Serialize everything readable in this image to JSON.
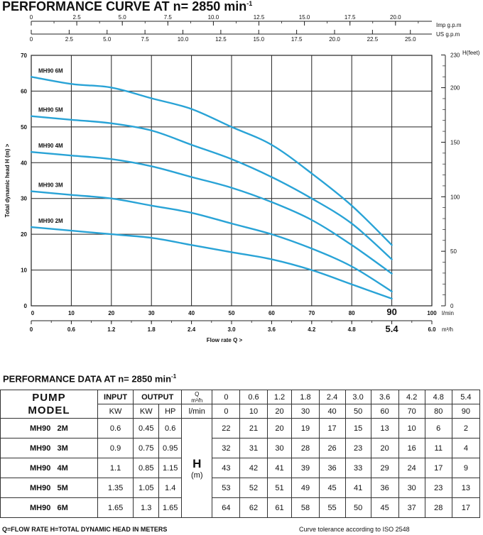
{
  "chart_title": "PERFORMANCE CURVE AT n= 2850 min",
  "chart_title_sup": "-1",
  "chart_data": {
    "type": "line",
    "ylabel": "Total dynamic head H (m)",
    "xlabel": "Flow rate Q",
    "ylim": [
      0,
      70
    ],
    "yticks": [
      "0",
      "10",
      "20",
      "30",
      "40",
      "50",
      "60",
      "70"
    ],
    "xticks_lmin": [
      "10",
      "20",
      "30",
      "40",
      "50",
      "60",
      "70",
      "80",
      "90",
      "100"
    ],
    "xticks_lmin_unit": "l/min",
    "xticks_m3h": [
      "0",
      "0.6",
      "1.2",
      "1.8",
      "2.4",
      "3.0",
      "3.6",
      "4.2",
      "4.8",
      "5.4",
      "6.0"
    ],
    "xticks_m3h_unit": "m³/h",
    "x_lmin_zero": "0",
    "top_imp_label": "Imp g.p.m",
    "top_imp_ticks": [
      "0",
      "2.5",
      "5.0",
      "7.5",
      "10.0",
      "12.5",
      "15.0",
      "17.5",
      "20.0"
    ],
    "top_us_label": "US  g.p.m",
    "top_us_ticks": [
      "0",
      "2.5",
      "5.0",
      "7.5",
      "10.0",
      "12.5",
      "15.0",
      "17.5",
      "20.0",
      "22.5",
      "25.0"
    ],
    "right_axis_label": "H(feet)",
    "right_ticks": [
      "230",
      "200",
      "150",
      "100",
      "50",
      "0"
    ],
    "x": [
      0,
      10,
      20,
      30,
      40,
      50,
      60,
      70,
      80,
      90
    ],
    "series": [
      {
        "name": "MH90 2M",
        "values": [
          22,
          21,
          20,
          19,
          17,
          15,
          13,
          10,
          6,
          2
        ]
      },
      {
        "name": "MH90 3M",
        "values": [
          32,
          31,
          30,
          28,
          26,
          23,
          20,
          16,
          11,
          4
        ]
      },
      {
        "name": "MH90 4M",
        "values": [
          43,
          42,
          41,
          39,
          36,
          33,
          29,
          24,
          17,
          9
        ]
      },
      {
        "name": "MH90 5M",
        "values": [
          53,
          52,
          51,
          49,
          45,
          41,
          36,
          30,
          23,
          13
        ]
      },
      {
        "name": "MH90 6M",
        "values": [
          64,
          62,
          61,
          58,
          55,
          50,
          45,
          37,
          28,
          17
        ]
      }
    ],
    "grid": true,
    "colors": {
      "curve": "#29a3d6",
      "grid": "#222222",
      "axis": "#222222"
    }
  },
  "table": {
    "title": "PERFORMANCE DATA AT n= 2850 min",
    "title_sup": "-1",
    "pump_label": "PUMP",
    "model_label": "MODEL",
    "input_label": "INPUT",
    "output_label": "OUTPUT",
    "kw_label": "KW",
    "kw2_label": "KW",
    "hp_label": "HP",
    "q_label": "Q",
    "q_unit": "m³/h",
    "lmin_label": "l/min",
    "h_label": "H",
    "h_unit": "(m)",
    "q_m3h": [
      "0",
      "0.6",
      "1.2",
      "1.8",
      "2.4",
      "3.0",
      "3.6",
      "4.2",
      "4.8",
      "5.4"
    ],
    "q_lmin": [
      "0",
      "10",
      "20",
      "30",
      "40",
      "50",
      "60",
      "70",
      "80",
      "90"
    ],
    "rows": [
      {
        "model": "MH90   2M",
        "kw_in": "0.6",
        "kw_out": "0.45",
        "hp": "0.6",
        "h": [
          "22",
          "21",
          "20",
          "19",
          "17",
          "15",
          "13",
          "10",
          "6",
          "2"
        ]
      },
      {
        "model": "MH90   3M",
        "kw_in": "0.9",
        "kw_out": "0.75",
        "hp": "0.95",
        "h": [
          "32",
          "31",
          "30",
          "28",
          "26",
          "23",
          "20",
          "16",
          "11",
          "4"
        ]
      },
      {
        "model": "MH90   4M",
        "kw_in": "1.1",
        "kw_out": "0.85",
        "hp": "1.15",
        "h": [
          "43",
          "42",
          "41",
          "39",
          "36",
          "33",
          "29",
          "24",
          "17",
          "9"
        ]
      },
      {
        "model": "MH90   5M",
        "kw_in": "1.35",
        "kw_out": "1.05",
        "hp": "1.4",
        "h": [
          "53",
          "52",
          "51",
          "49",
          "45",
          "41",
          "36",
          "30",
          "23",
          "13"
        ]
      },
      {
        "model": "MH90   6M",
        "kw_in": "1.65",
        "kw_out": "1.3",
        "hp": "1.65",
        "h": [
          "64",
          "62",
          "61",
          "58",
          "55",
          "50",
          "45",
          "37",
          "28",
          "17"
        ]
      }
    ]
  },
  "footer": {
    "left": "Q=FLOW RATE  H=TOTAL DYNAMIC HEAD IN METERS",
    "right": "Curve tolerance according to ISO 2548"
  }
}
